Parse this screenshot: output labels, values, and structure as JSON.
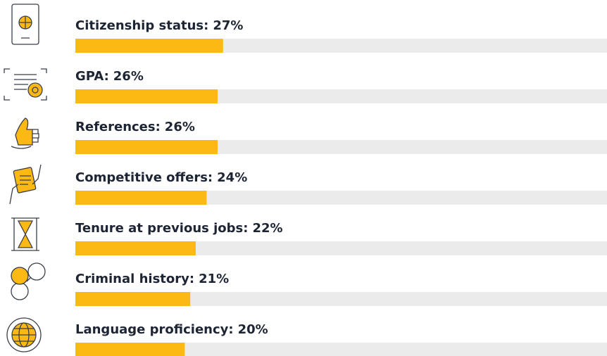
{
  "chart_data": {
    "type": "bar",
    "categories": [
      "Citizenship status:",
      "GPA:",
      "References:",
      "Competitive offers:",
      "Tenure at previous jobs:",
      "Criminal history:",
      "Language proficiency:"
    ],
    "values": [
      27,
      26,
      26,
      24,
      22,
      21,
      20
    ],
    "value_labels": [
      "27%",
      "26%",
      "26%",
      "24%",
      "22%",
      "21%",
      "20%"
    ],
    "xlim": [
      0,
      100
    ],
    "color": "#fdb913",
    "track_color": "#ebebeb"
  }
}
